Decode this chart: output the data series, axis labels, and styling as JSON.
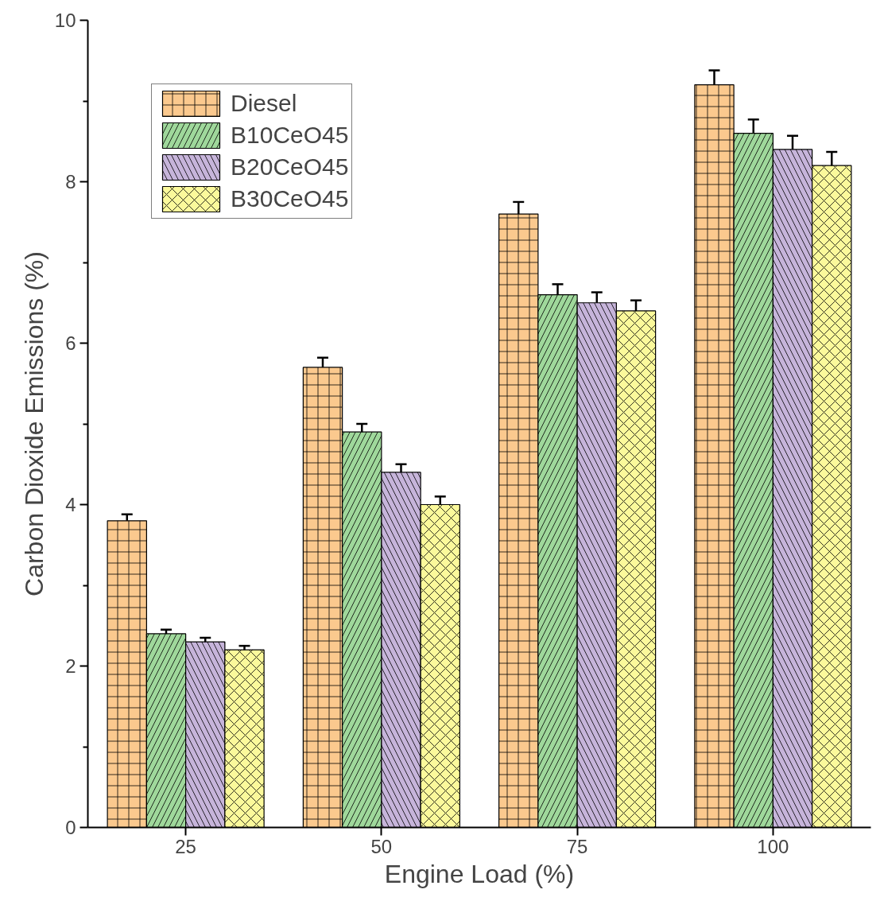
{
  "chart_data": {
    "type": "bar",
    "xlabel": "Engine Load (%)",
    "ylabel": "Carbon Dioxide Emissions (%)",
    "categories": [
      "25",
      "50",
      "75",
      "100"
    ],
    "series": [
      {
        "name": "Diesel",
        "color": "#fbc98e",
        "values": [
          3.8,
          5.7,
          7.6,
          9.2
        ],
        "errors": [
          0.08,
          0.12,
          0.15,
          0.18
        ]
      },
      {
        "name": "B10CeO45",
        "color": "#9fd89b",
        "values": [
          2.4,
          4.9,
          6.6,
          8.6
        ],
        "errors": [
          0.05,
          0.1,
          0.13,
          0.17
        ]
      },
      {
        "name": "B20CeO45",
        "color": "#c6b4da",
        "values": [
          2.3,
          4.4,
          6.5,
          8.4
        ],
        "errors": [
          0.05,
          0.1,
          0.13,
          0.17
        ]
      },
      {
        "name": "B30CeO45",
        "color": "#fbf99b",
        "values": [
          2.2,
          4.0,
          6.4,
          8.2
        ],
        "errors": [
          0.05,
          0.1,
          0.13,
          0.17
        ]
      }
    ],
    "ylim": [
      0,
      10
    ],
    "yticks": [
      0,
      2,
      4,
      6,
      8,
      10
    ],
    "grid": false,
    "legend": "top left"
  }
}
